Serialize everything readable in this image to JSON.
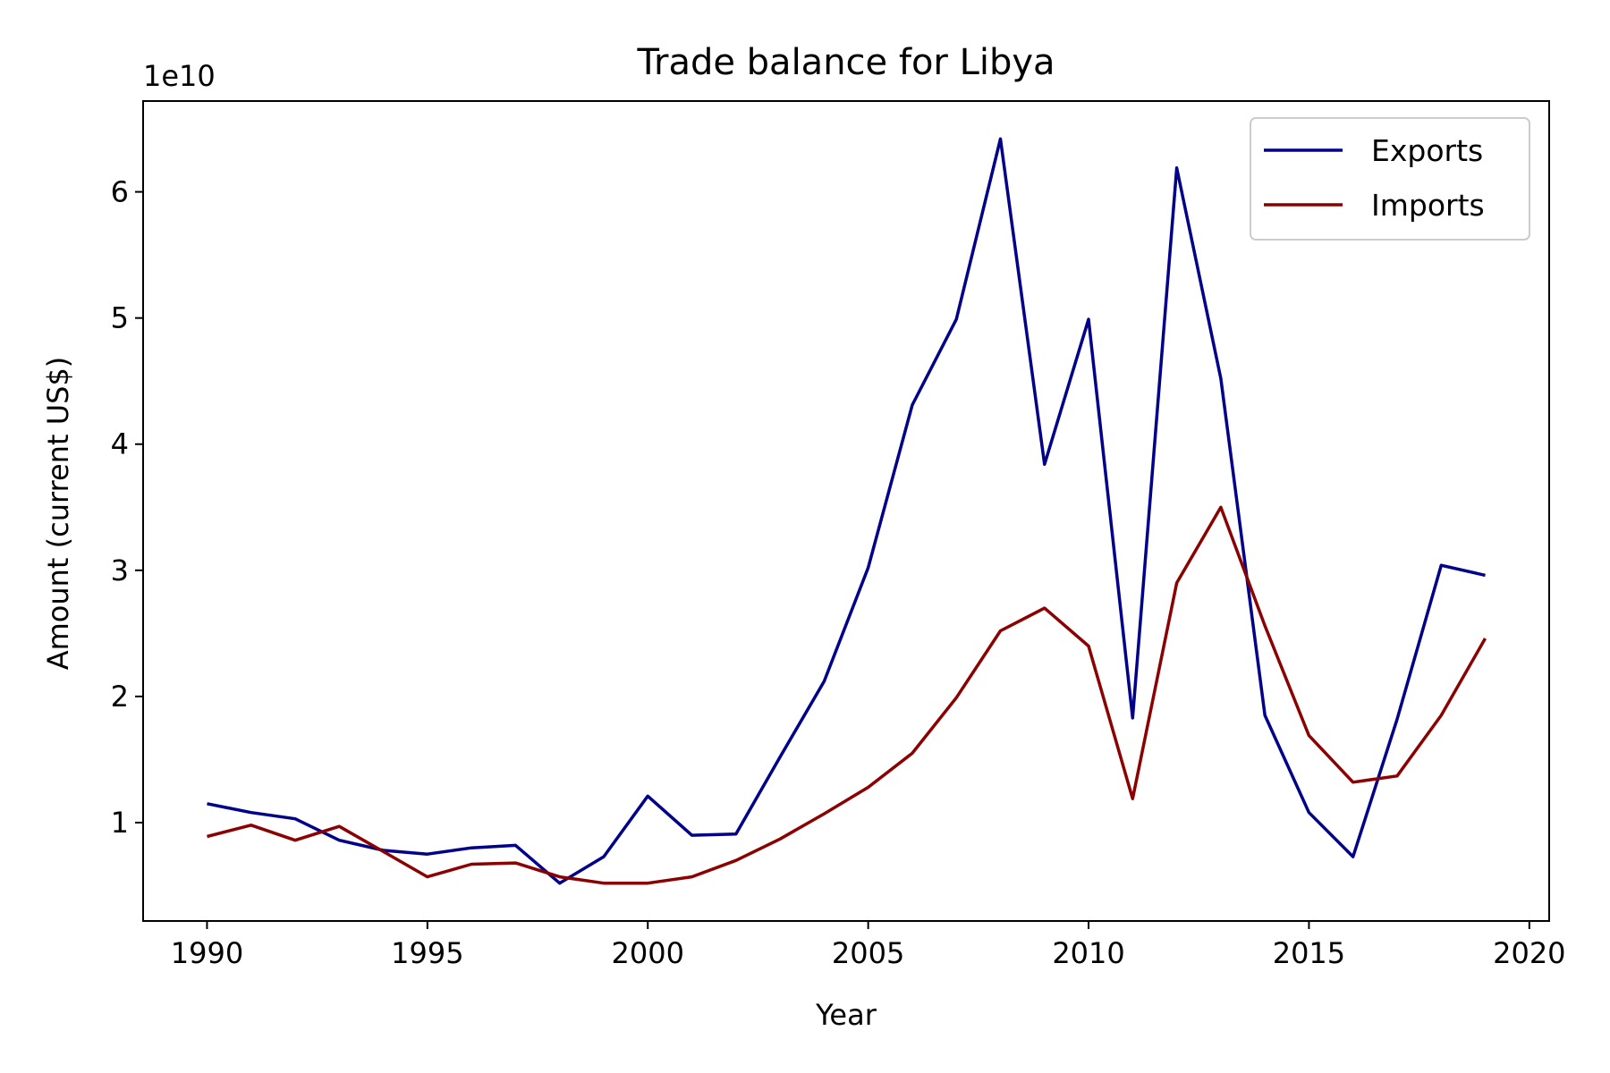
{
  "chart_data": {
    "type": "line",
    "title": "Trade balance for Libya",
    "xlabel": "Year",
    "ylabel": "Amount (current US$)",
    "y_offset_label": "1e10",
    "y_scale_factor": 10000000000,
    "xlim": [
      1988.55,
      2020.45
    ],
    "ylim": [
      0.22,
      6.72
    ],
    "x_ticks": [
      1990,
      1995,
      2000,
      2005,
      2010,
      2015,
      2020
    ],
    "y_ticks": [
      1,
      2,
      3,
      4,
      5,
      6
    ],
    "grid": false,
    "legend_position": "top-right",
    "x": [
      1990,
      1991,
      1992,
      1993,
      1994,
      1995,
      1996,
      1997,
      1998,
      1999,
      2000,
      2001,
      2002,
      2003,
      2004,
      2005,
      2006,
      2007,
      2008,
      2009,
      2010,
      2011,
      2012,
      2013,
      2014,
      2015,
      2016,
      2017,
      2018,
      2019
    ],
    "series": [
      {
        "name": "Exports",
        "color": "#00008b",
        "values": [
          1.15,
          1.08,
          1.03,
          0.86,
          0.78,
          0.75,
          0.8,
          0.82,
          0.52,
          0.73,
          1.21,
          0.9,
          0.91,
          1.52,
          2.12,
          3.02,
          4.31,
          4.99,
          6.42,
          3.84,
          4.99,
          1.83,
          6.19,
          4.52,
          1.85,
          1.08,
          0.73,
          1.82,
          3.04,
          2.96
        ]
      },
      {
        "name": "Imports",
        "color": "#8b0000",
        "values": [
          0.89,
          0.98,
          0.86,
          0.97,
          0.77,
          0.57,
          0.67,
          0.68,
          0.57,
          0.52,
          0.52,
          0.57,
          0.7,
          0.87,
          1.07,
          1.28,
          1.55,
          1.99,
          2.52,
          2.7,
          2.4,
          1.19,
          2.9,
          3.5,
          2.56,
          1.69,
          1.32,
          1.37,
          1.85,
          2.46
        ]
      }
    ]
  }
}
